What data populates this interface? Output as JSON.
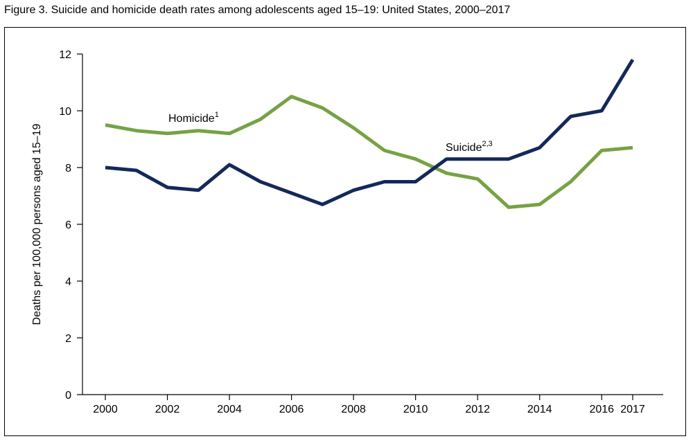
{
  "figure": {
    "title": "Figure 3. Suicide and homicide death rates among adolescents aged 15–19: United States, 2000–2017"
  },
  "chart_data": {
    "type": "line",
    "title": "Figure 3. Suicide and homicide death rates among adolescents aged 15–19: United States, 2000–2017",
    "xlabel": "",
    "ylabel": "Deaths per 100,000 persons aged 15–19",
    "x": [
      2000,
      2001,
      2002,
      2003,
      2004,
      2005,
      2006,
      2007,
      2008,
      2009,
      2010,
      2011,
      2012,
      2013,
      2014,
      2015,
      2016,
      2017
    ],
    "xlim": [
      2000,
      2017
    ],
    "x_tick_labels": [
      "2000",
      "2002",
      "2004",
      "2006",
      "2008",
      "2010",
      "2012",
      "2014",
      "2016",
      "2017"
    ],
    "ylim": [
      0,
      12
    ],
    "y_tick_labels": [
      "0",
      "2",
      "4",
      "6",
      "8",
      "10",
      "12"
    ],
    "grid": false,
    "series": [
      {
        "name": "Homicide",
        "superscript": "1",
        "color": "#76a244",
        "values": [
          9.5,
          9.3,
          9.2,
          9.3,
          9.2,
          9.7,
          10.5,
          10.1,
          9.4,
          8.6,
          8.3,
          7.8,
          7.6,
          6.6,
          6.7,
          7.5,
          8.6,
          8.7
        ]
      },
      {
        "name": "Suicide",
        "superscript": "2,3",
        "color": "#14285a",
        "values": [
          8.0,
          7.9,
          7.3,
          7.2,
          8.1,
          7.5,
          7.1,
          6.7,
          7.2,
          7.5,
          7.5,
          8.3,
          8.3,
          8.3,
          8.7,
          9.8,
          10.0,
          11.8
        ]
      }
    ]
  }
}
